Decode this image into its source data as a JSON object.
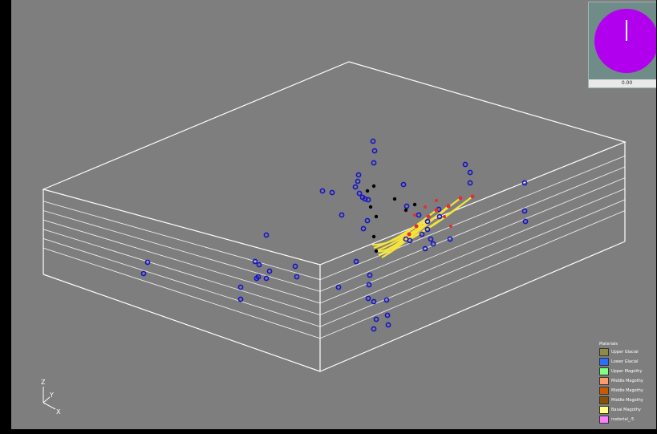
{
  "clock": {
    "readout": "0.00",
    "face_color": "#b000ee",
    "panel_color": "#6f8c88"
  },
  "legend": {
    "title": "Materials",
    "items": [
      {
        "label": "Upper Glacial",
        "color": "#8f8a45"
      },
      {
        "label": "Lower Glacial",
        "color": "#2b6fff"
      },
      {
        "label": "Upper Magothy",
        "color": "#80ff80"
      },
      {
        "label": "Middle Magothy",
        "color": "#ff9a6b"
      },
      {
        "label": "Middle Magothy",
        "color": "#c85a00"
      },
      {
        "label": "Middle Magothy",
        "color": "#8a5200"
      },
      {
        "label": "Basal Magothy",
        "color": "#ffff80"
      },
      {
        "label": "material_-5",
        "color": "#ff80ff"
      }
    ]
  },
  "axes": {
    "z": "Z",
    "y": "Y",
    "x": "X"
  },
  "colors": {
    "background": "#7e7e7e",
    "box_lines": "#ffffff",
    "well_markers": "#1515c8",
    "pathlines": "#f4e33c",
    "particle_start": "#000000",
    "particle_end": "#e03030"
  }
}
